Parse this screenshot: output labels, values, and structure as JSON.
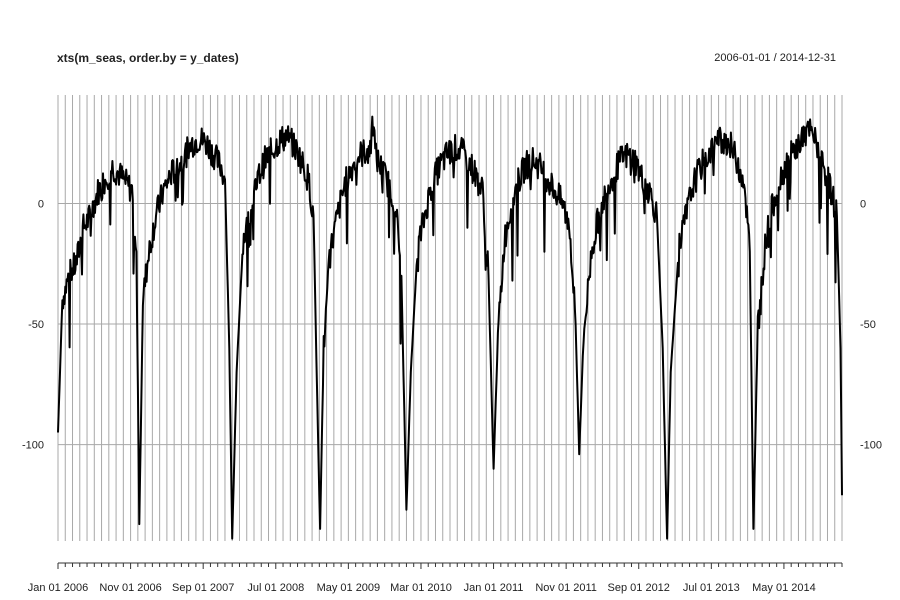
{
  "chart_data": {
    "type": "line",
    "title": "xts(m_seas, order.by = y_dates)",
    "date_range": "2006-01-01 / 2014-12-31",
    "x_start": "2006-01-01",
    "x_end": "2014-12-31",
    "ylim": [
      -140,
      45
    ],
    "y_ticks": [
      0,
      -50,
      -100
    ],
    "y_tick_labels": [
      "0",
      "-50",
      "-100"
    ],
    "x_tick_labels": [
      "Jan 01 2006",
      "Nov 01 2006",
      "Sep 01 2007",
      "Jul 01 2008",
      "May 01 2009",
      "Mar 01 2010",
      "Jan 01 2011",
      "Nov 01 2011",
      "Sep 01 2012",
      "Jul 01 2013",
      "May 01 2014"
    ],
    "grid": "monthly vertical lines, horizontal lines at y ticks",
    "series": [
      {
        "name": "m_seas",
        "points": [
          [
            0,
            -95
          ],
          [
            0.6,
            -40
          ],
          [
            1.5,
            -30
          ],
          [
            2.5,
            -25
          ],
          [
            3.5,
            -10
          ],
          [
            4.5,
            -5
          ],
          [
            5.5,
            5
          ],
          [
            6.5,
            10
          ],
          [
            7.5,
            15
          ],
          [
            8.5,
            12
          ],
          [
            9.5,
            8
          ],
          [
            10.3,
            5
          ],
          [
            10.8,
            -20
          ],
          [
            11.2,
            -133
          ],
          [
            11.7,
            -40
          ],
          [
            12.5,
            -20
          ],
          [
            13.5,
            -5
          ],
          [
            14.5,
            5
          ],
          [
            15.5,
            12
          ],
          [
            16.5,
            15
          ],
          [
            17.5,
            20
          ],
          [
            18.5,
            25
          ],
          [
            19.5,
            27
          ],
          [
            20.5,
            25
          ],
          [
            21.5,
            20
          ],
          [
            22.5,
            15
          ],
          [
            23.0,
            10
          ],
          [
            23.6,
            -60
          ],
          [
            24.0,
            -139
          ],
          [
            24.6,
            -70
          ],
          [
            25.5,
            -15
          ],
          [
            26.5,
            -5
          ],
          [
            27.5,
            10
          ],
          [
            28.5,
            18
          ],
          [
            29.5,
            22
          ],
          [
            30.5,
            26
          ],
          [
            31.5,
            28
          ],
          [
            32.5,
            24
          ],
          [
            33.5,
            18
          ],
          [
            34.5,
            10
          ],
          [
            35.2,
            -5
          ],
          [
            35.7,
            -80
          ],
          [
            36.1,
            -135
          ],
          [
            36.6,
            -60
          ],
          [
            37.5,
            -20
          ],
          [
            38.5,
            -5
          ],
          [
            39.5,
            8
          ],
          [
            40.5,
            15
          ],
          [
            41.5,
            20
          ],
          [
            42.5,
            22
          ],
          [
            43.2,
            25
          ],
          [
            43.4,
            44
          ],
          [
            43.7,
            20
          ],
          [
            44.5,
            15
          ],
          [
            45.5,
            8
          ],
          [
            46.5,
            0
          ],
          [
            47.3,
            -30
          ],
          [
            48.0,
            -127
          ],
          [
            48.6,
            -70
          ],
          [
            49.5,
            -20
          ],
          [
            50.5,
            -5
          ],
          [
            51.5,
            8
          ],
          [
            52.5,
            15
          ],
          [
            53.5,
            20
          ],
          [
            54.5,
            23
          ],
          [
            55.5,
            22
          ],
          [
            56.5,
            18
          ],
          [
            57.5,
            12
          ],
          [
            58.5,
            5
          ],
          [
            59.3,
            -30
          ],
          [
            60.0,
            -110
          ],
          [
            60.6,
            -55
          ],
          [
            61.5,
            -15
          ],
          [
            62.5,
            0
          ],
          [
            63.5,
            10
          ],
          [
            64.5,
            16
          ],
          [
            65.5,
            18
          ],
          [
            66.5,
            15
          ],
          [
            67.5,
            10
          ],
          [
            68.5,
            5
          ],
          [
            69.5,
            0
          ],
          [
            70.5,
            -10
          ],
          [
            71.3,
            -50
          ],
          [
            71.8,
            -104
          ],
          [
            72.4,
            -55
          ],
          [
            73.5,
            -20
          ],
          [
            74.5,
            -5
          ],
          [
            75.5,
            5
          ],
          [
            76.5,
            12
          ],
          [
            77.5,
            18
          ],
          [
            78.5,
            20
          ],
          [
            79.5,
            18
          ],
          [
            80.5,
            10
          ],
          [
            81.5,
            5
          ],
          [
            82.5,
            -5
          ],
          [
            83.3,
            -60
          ],
          [
            83.9,
            -139
          ],
          [
            84.4,
            -70
          ],
          [
            85.5,
            -20
          ],
          [
            86.5,
            -5
          ],
          [
            87.5,
            8
          ],
          [
            88.5,
            15
          ],
          [
            89.5,
            20
          ],
          [
            90.5,
            25
          ],
          [
            91.5,
            27
          ],
          [
            92.5,
            25
          ],
          [
            93.5,
            18
          ],
          [
            94.5,
            10
          ],
          [
            95.3,
            -20
          ],
          [
            95.8,
            -135
          ],
          [
            96.4,
            -50
          ],
          [
            97.5,
            -15
          ],
          [
            98.5,
            0
          ],
          [
            99.5,
            10
          ],
          [
            100.5,
            18
          ],
          [
            101.5,
            22
          ],
          [
            102.5,
            27
          ],
          [
            103.5,
            30
          ],
          [
            104.5,
            25
          ],
          [
            105.5,
            15
          ],
          [
            106.5,
            5
          ],
          [
            107.3,
            -5
          ],
          [
            107.8,
            -60
          ],
          [
            108.0,
            -121
          ]
        ]
      }
    ]
  }
}
